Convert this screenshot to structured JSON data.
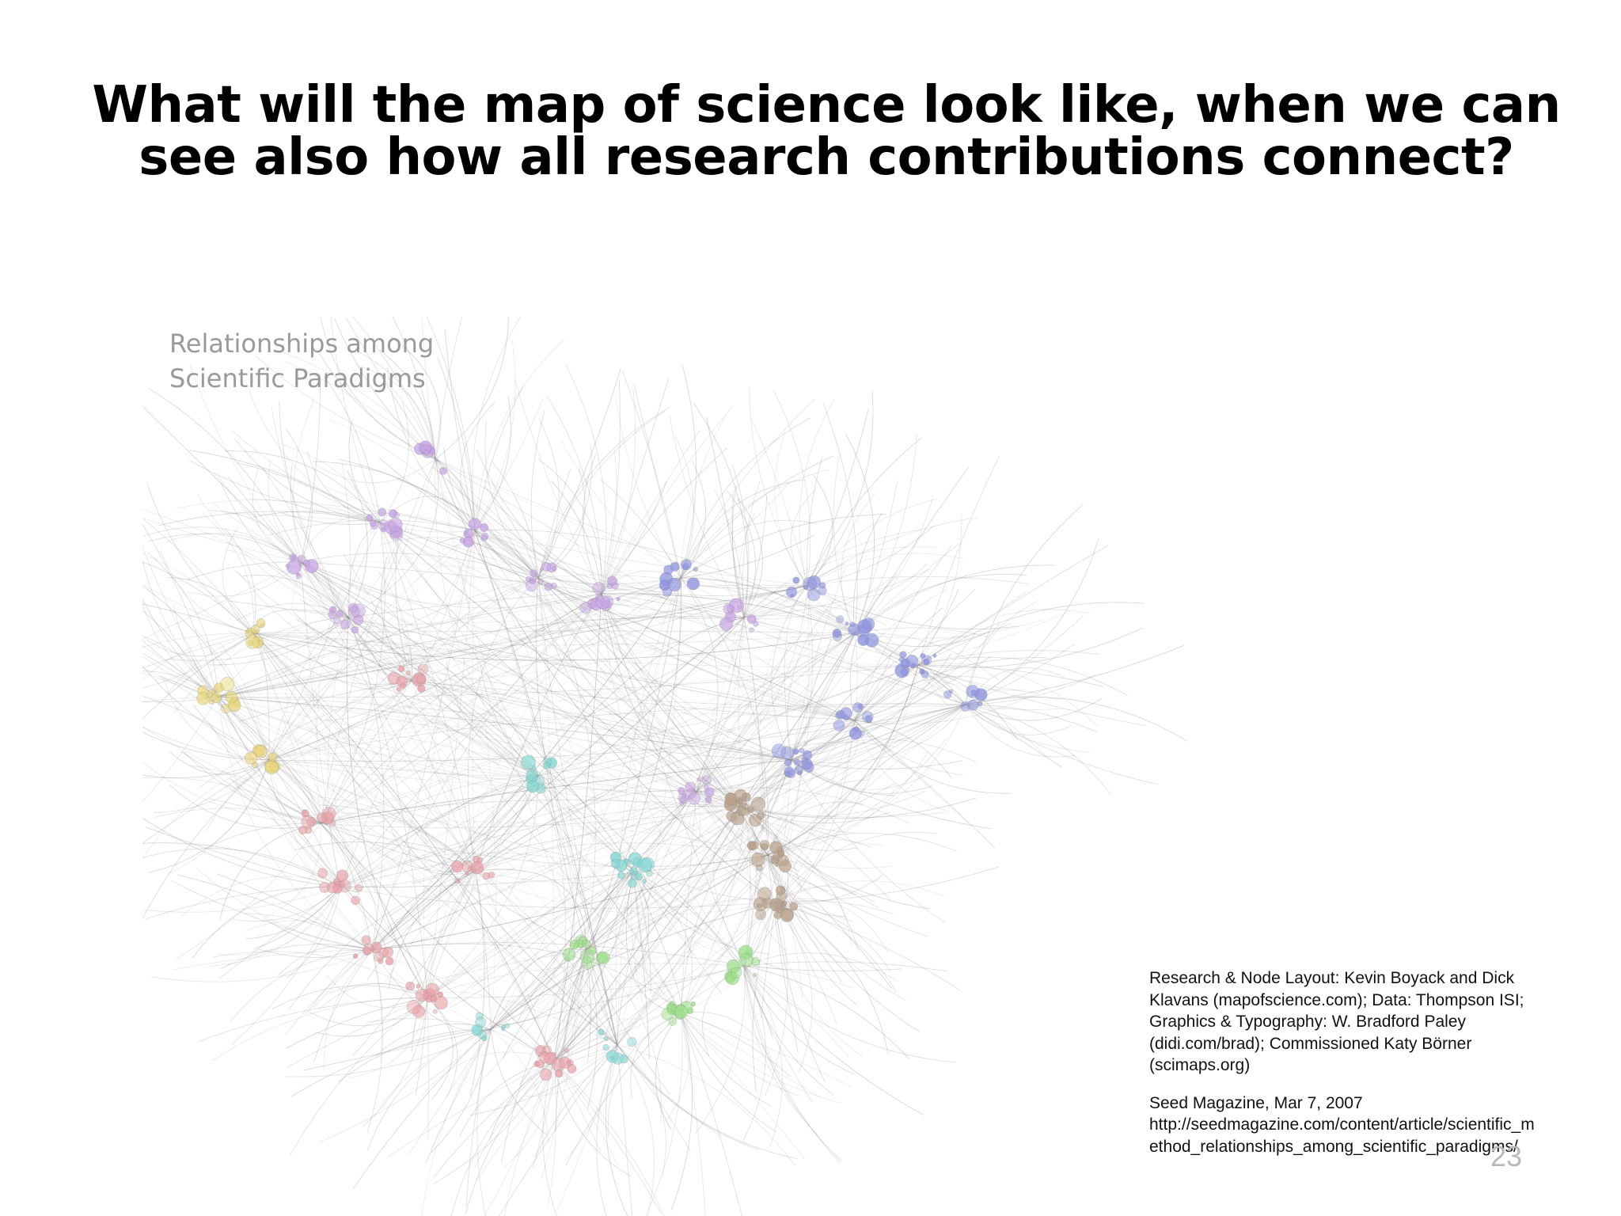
{
  "slide": {
    "title_line1": "What will the map of science look like, when we can",
    "title_line2": "see also how all research contributions connect?",
    "page_number": "23"
  },
  "map": {
    "title_line1": "Relationships among",
    "title_line2": "Scientific Paradigms",
    "cluster_colors": {
      "blue": "#8f95e0",
      "purple": "#c7a3e3",
      "yellow": "#e8d57a",
      "red": "#e8a2a8",
      "teal": "#86d8d4",
      "green": "#9ee08c",
      "brown": "#b8a08a",
      "lines": "#9a9a9a"
    }
  },
  "credits": {
    "line1": "Research & Node Layout: Kevin Boyack and Dick",
    "line2": "Klavans (mapofscience.com); Data: Thompson ISI;",
    "line3": "Graphics & Typography: W. Bradford Paley",
    "line4": "(didi.com/brad); Commissioned Katy Börner",
    "line5": "(scimaps.org)",
    "line6": "Seed Magazine, Mar 7, 2007",
    "line7": "http://seedmagazine.com/content/article/scientific_m",
    "line8": "ethod_relationships_among_scientific_paradigms/"
  }
}
